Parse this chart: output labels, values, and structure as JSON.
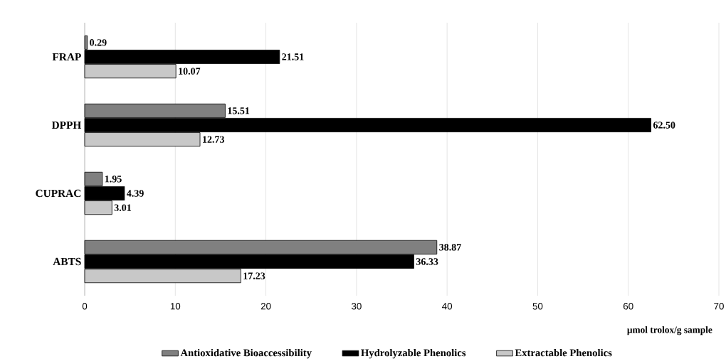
{
  "chart_data": {
    "type": "bar",
    "orientation": "horizontal",
    "categories": [
      "FRAP",
      "DPPH",
      "CUPRAC",
      "ABTS"
    ],
    "series": [
      {
        "name": "Antioxidative Bioaccessibility",
        "color": "#808080",
        "values": [
          0.29,
          15.51,
          1.95,
          38.87
        ],
        "value_labels": [
          "0.29",
          "15.51",
          "1.95",
          "38.87"
        ]
      },
      {
        "name": "Hydrolyzable Phenolics",
        "color": "#000000",
        "values": [
          21.51,
          62.5,
          4.39,
          36.33
        ],
        "value_labels": [
          "21.51",
          "62.50",
          "4.39",
          "36.33"
        ]
      },
      {
        "name": "Extractable Phenolics",
        "color": "#c8c8c8",
        "values": [
          10.07,
          12.73,
          3.01,
          17.23
        ],
        "value_labels": [
          "10.07",
          "12.73",
          "3.01",
          "17.23"
        ]
      }
    ],
    "xlabel": "μmol trolox/g sample",
    "xlim": [
      0,
      70
    ],
    "xticks": [
      0,
      10,
      20,
      30,
      40,
      50,
      60,
      70
    ],
    "grid": "x",
    "legend": "bottom"
  }
}
